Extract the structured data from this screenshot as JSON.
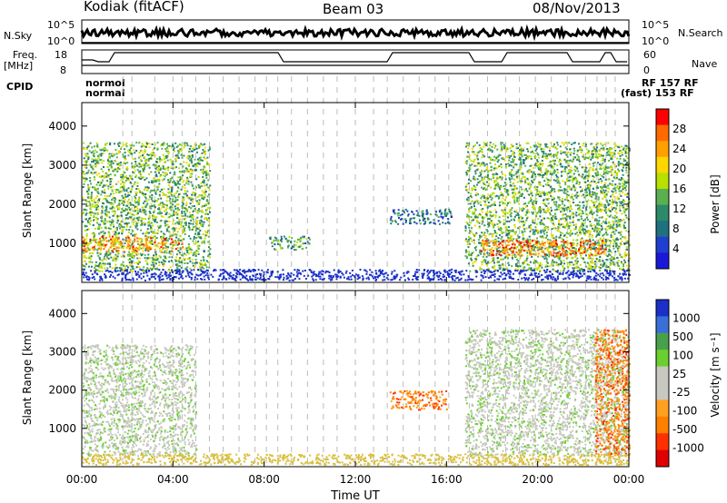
{
  "header": {
    "station": "Kodiak (fitACF)",
    "beam": "Beam 03",
    "date": "08/Nov/2013"
  },
  "panels": {
    "nsky_label": "N.Sky",
    "nsearch_label": "N.Search",
    "freq_label_1": "Freq.",
    "freq_label_2": "[MHz]",
    "nave_label": "Nave",
    "cpid_label": "CPID",
    "noise_ticks_left": [
      "10^5",
      "10^0"
    ],
    "noise_ticks_right": [
      "10^5",
      "10^0"
    ],
    "freq_ticks": [
      "18",
      "8"
    ],
    "nave_ticks": [
      "60",
      "0"
    ]
  },
  "cpid": {
    "row1": "normol",
    "row2": "normal",
    "tail1": "RF 157 RF",
    "tail2": "(fast) 153 RF"
  },
  "chart_data": [
    {
      "type": "heatmap",
      "title": "",
      "xlabel": "Time UT",
      "ylabel": "Slant Range [km]",
      "xlim": [
        0,
        24
      ],
      "ylim": [
        0,
        4600
      ],
      "x_ticks": [
        "00:00",
        "04:00",
        "08:00",
        "12:00",
        "16:00",
        "20:00",
        "00:00"
      ],
      "y_ticks": [
        "1000",
        "2000",
        "3000",
        "4000"
      ],
      "colorbar": {
        "label": "Power [dB]",
        "ticks": [
          "28",
          "24",
          "20",
          "16",
          "12",
          "8",
          "4"
        ],
        "colors": [
          "#ff0000",
          "#ff6a00",
          "#ff9f00",
          "#ffd700",
          "#b8e000",
          "#5ab050",
          "#2c8a68",
          "#207080",
          "#1f3fd0",
          "#1a18d8"
        ]
      },
      "regions": [
        {
          "t0": 0.0,
          "t1": 5.6,
          "r0": 300,
          "r1": 3600,
          "level": 12
        },
        {
          "t0": 0.0,
          "t1": 4.4,
          "r0": 800,
          "r1": 1200,
          "level": 22
        },
        {
          "t0": 8.2,
          "t1": 10.0,
          "r0": 850,
          "r1": 1200,
          "level": 10
        },
        {
          "t0": 13.5,
          "t1": 16.2,
          "r0": 1500,
          "r1": 1900,
          "level": 6
        },
        {
          "t0": 16.8,
          "t1": 24.0,
          "r0": 300,
          "r1": 3600,
          "level": 12
        },
        {
          "t0": 17.5,
          "t1": 23.0,
          "r0": 700,
          "r1": 1100,
          "level": 24
        }
      ]
    },
    {
      "type": "heatmap",
      "title": "",
      "xlabel": "Time UT",
      "ylabel": "Slant Range [km]",
      "xlim": [
        0,
        24
      ],
      "ylim": [
        0,
        4600
      ],
      "x_ticks": [
        "00:00",
        "04:00",
        "08:00",
        "12:00",
        "16:00",
        "20:00",
        "00:00"
      ],
      "y_ticks": [
        "1000",
        "2000",
        "3000",
        "4000"
      ],
      "colorbar": {
        "label": "Velocity [m s⁻¹]",
        "ticks": [
          "1000",
          "500",
          "100",
          "25",
          "-25",
          "-100",
          "-500",
          "-1000"
        ],
        "colors": [
          "#1a30c8",
          "#3b6fd8",
          "#4aa04a",
          "#6ad030",
          "#c8c8c0",
          "#c8c8c0",
          "#ffa020",
          "#ff8000",
          "#ff3000",
          "#e00000"
        ]
      },
      "regions": [
        {
          "t0": 0.0,
          "t1": 5.0,
          "r0": 300,
          "r1": 3200,
          "level": 0
        },
        {
          "t0": 13.5,
          "t1": 16.0,
          "r0": 1500,
          "r1": 2000,
          "level": -200
        },
        {
          "t0": 16.8,
          "t1": 24.0,
          "r0": 300,
          "r1": 3600,
          "level": 0
        },
        {
          "t0": 22.5,
          "t1": 24.0,
          "r0": 300,
          "r1": 3600,
          "level": -300
        }
      ]
    }
  ]
}
